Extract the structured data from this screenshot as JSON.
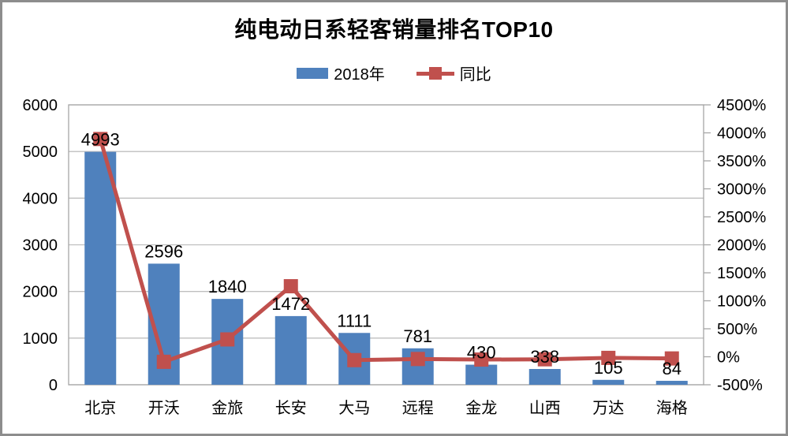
{
  "title": "纯电动日系轻客销量排名TOP10",
  "chart_data": {
    "type": "bar",
    "subtype": "combo bar+line, dual axis",
    "title": "纯电动日系轻客销量排名TOP10",
    "categories": [
      "北京",
      "开沃",
      "金旅",
      "长安",
      "大马",
      "远程",
      "金龙",
      "山西",
      "万达",
      "海格"
    ],
    "series": [
      {
        "name": "2018年",
        "type": "bar",
        "axis": "left",
        "color": "#4F81BD",
        "values": [
          4993,
          2596,
          1840,
          1472,
          1111,
          781,
          430,
          338,
          105,
          84
        ],
        "data_labels": true
      },
      {
        "name": "同比",
        "type": "line",
        "axis": "right",
        "color": "#C0504D",
        "marker": "square",
        "unit": "%",
        "values": [
          3890,
          -90,
          310,
          1260,
          -60,
          -40,
          -50,
          -45,
          -20,
          -30
        ],
        "values_note": "estimated from right axis gridlines; no data labels shown",
        "data_labels": false
      }
    ],
    "left_axis": {
      "min": 0,
      "max": 6000,
      "step": 1000,
      "ticks": [
        "0",
        "1000",
        "2000",
        "3000",
        "4000",
        "5000",
        "6000"
      ]
    },
    "right_axis": {
      "min": -500,
      "max": 4500,
      "step": 500,
      "ticks": [
        "-500%",
        "0%",
        "500%",
        "1000%",
        "1500%",
        "2000%",
        "2500%",
        "3000%",
        "3500%",
        "4000%",
        "4500%"
      ]
    },
    "grid": true,
    "legend_position": "top",
    "colors": {
      "bar": "#4F81BD",
      "line": "#C0504D",
      "gridline": "#BFBFBF",
      "axis": "#A6A6A6",
      "frame_border": "#8d8d8d",
      "background": "#FFFFFF",
      "text": "#000000"
    }
  }
}
